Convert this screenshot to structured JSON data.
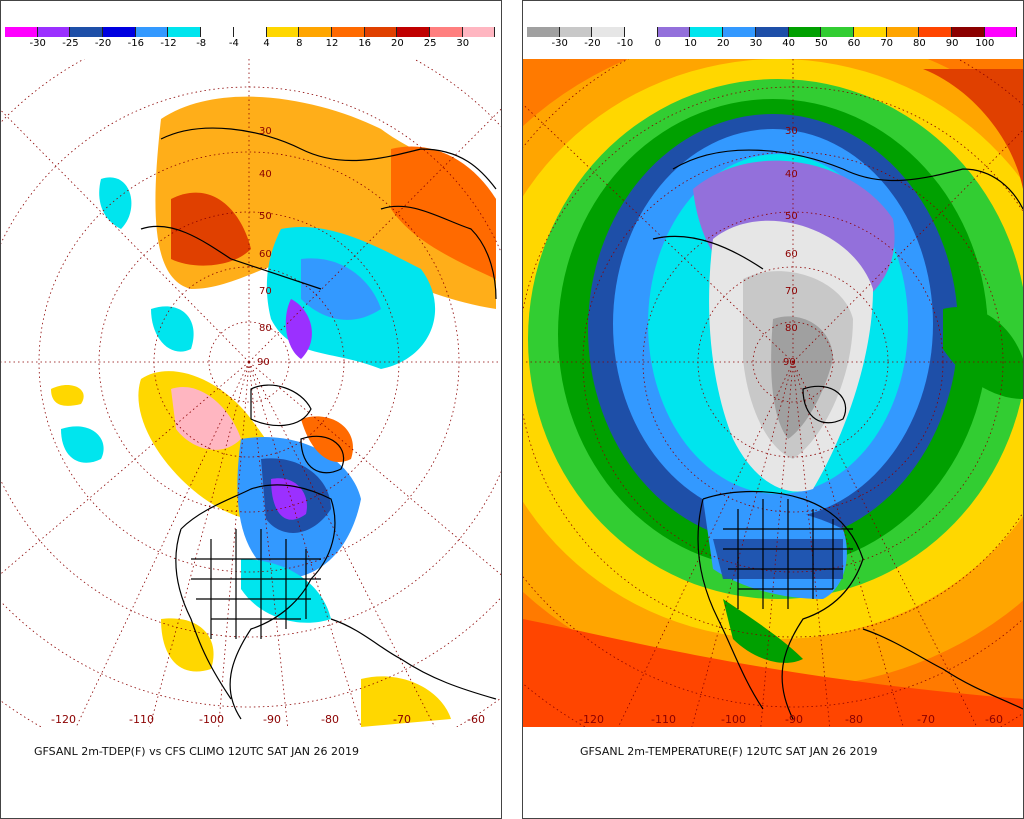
{
  "left": {
    "caption": "GFSANL 2m-TDEP(F) vs CFS CLIMO 12UTC SAT JAN 26 2019",
    "legend": {
      "labels": [
        "-30",
        "-25",
        "-20",
        "-16",
        "-12",
        "-8",
        "-4",
        "4",
        "8",
        "12",
        "16",
        "20",
        "25",
        "30"
      ],
      "colors": [
        "#ff00ff",
        "#9b30ff",
        "#1e4fa8",
        "#0000e0",
        "#3399ff",
        "#00e5ee",
        "#ffffff",
        "#ffffff",
        "#ffd700",
        "#ffa500",
        "#ff6a00",
        "#e04000",
        "#c00000",
        "#ff7f7f",
        "#ffb6c1"
      ]
    },
    "lon_labels": [
      "-120",
      "-110",
      "-100",
      "-90",
      "-80",
      "-70",
      "-60"
    ],
    "lat_labels": [
      "30",
      "40",
      "50",
      "60",
      "70",
      "80",
      "90"
    ]
  },
  "right": {
    "caption": "GFSANL 2m-TEMPERATURE(F) 12UTC SAT JAN 26 2019",
    "legend": {
      "labels": [
        "-30",
        "-20",
        "-10",
        "0",
        "10",
        "20",
        "30",
        "40",
        "50",
        "60",
        "70",
        "80",
        "90",
        "100"
      ],
      "colors": [
        "#a0a0a0",
        "#c8c8c8",
        "#e6e6e6",
        "#ffffff",
        "#9370db",
        "#00e5ee",
        "#3399ff",
        "#1e4fa8",
        "#00a000",
        "#32cd32",
        "#ffd700",
        "#ffa500",
        "#ff4500",
        "#8b0000",
        "#ff00ff"
      ]
    },
    "lon_labels": [
      "-120",
      "-110",
      "-100",
      "-90",
      "-80",
      "-70",
      "-60"
    ],
    "lat_labels": [
      "30",
      "40",
      "50",
      "60",
      "70",
      "80",
      "90"
    ]
  }
}
